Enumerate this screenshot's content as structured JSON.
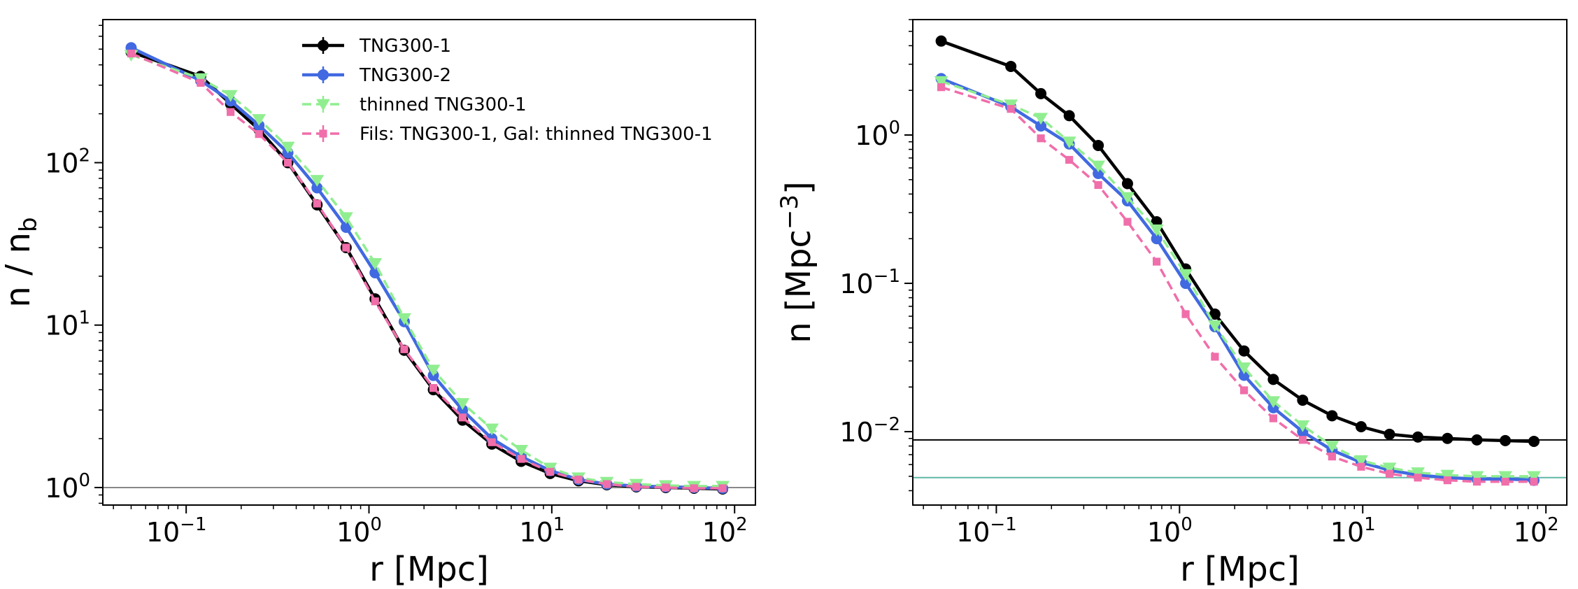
{
  "chart_data": [
    {
      "type": "line",
      "xscale": "log",
      "yscale": "log",
      "xlim": [
        0.035,
        130
      ],
      "ylim": [
        0.78,
        760
      ],
      "xlabel": "r [Mpc]",
      "ylabel_main": "n / n",
      "ylabel_sub": "b",
      "xticks": [
        {
          "base": "10",
          "exp": "−1",
          "value": 0.1
        },
        {
          "base": "10",
          "exp": "0",
          "value": 1
        },
        {
          "base": "10",
          "exp": "1",
          "value": 10
        },
        {
          "base": "10",
          "exp": "2",
          "value": 100
        }
      ],
      "yticks": [
        {
          "base": "10",
          "exp": "0",
          "value": 1
        },
        {
          "base": "10",
          "exp": "1",
          "value": 10
        },
        {
          "base": "10",
          "exp": "2",
          "value": 100
        }
      ],
      "hlines": [
        {
          "y": 1.0,
          "color": "#888888"
        }
      ],
      "legend_position": "upper-center",
      "series": [
        {
          "name": "TNG300-1",
          "color": "#000000",
          "dash": "solid",
          "marker": "circle",
          "x": [
            0.05,
            0.12,
            0.175,
            0.25,
            0.36,
            0.52,
            0.75,
            1.08,
            1.56,
            2.25,
            3.25,
            4.7,
            6.8,
            9.8,
            14,
            20,
            29,
            42,
            60,
            86
          ],
          "y": [
            480,
            340,
            230,
            160,
            100,
            55,
            30,
            14.5,
            7,
            4.0,
            2.6,
            1.85,
            1.45,
            1.22,
            1.1,
            1.04,
            1.01,
            1.0,
            0.99,
            0.98
          ]
        },
        {
          "name": "TNG300-2",
          "color": "#4169e1",
          "dash": "solid",
          "marker": "circle",
          "x": [
            0.05,
            0.12,
            0.175,
            0.25,
            0.36,
            0.52,
            0.75,
            1.08,
            1.56,
            2.25,
            3.25,
            4.7,
            6.8,
            9.8,
            14,
            20,
            29,
            42,
            60,
            86
          ],
          "y": [
            510,
            320,
            240,
            170,
            115,
            70,
            40,
            21,
            10.5,
            4.9,
            3.0,
            2.0,
            1.55,
            1.27,
            1.12,
            1.05,
            1.02,
            1.01,
            1.0,
            0.99
          ]
        },
        {
          "name": "thinned TNG300-1",
          "color": "#90ee90",
          "dash": "dashed",
          "marker": "triangle-down",
          "x": [
            0.05,
            0.12,
            0.175,
            0.25,
            0.36,
            0.52,
            0.75,
            1.08,
            1.56,
            2.25,
            3.25,
            4.7,
            6.8,
            9.8,
            14,
            20,
            29,
            42,
            60,
            86
          ],
          "y": [
            460,
            330,
            260,
            185,
            125,
            78,
            46,
            24,
            11,
            5.3,
            3.3,
            2.3,
            1.7,
            1.32,
            1.15,
            1.08,
            1.05,
            1.03,
            1.02,
            1.02
          ]
        },
        {
          "name": "Fils: TNG300-1, Gal: thinned TNG300-1",
          "color": "#f06eaa",
          "dash": "dashed",
          "marker": "square",
          "x": [
            0.05,
            0.12,
            0.175,
            0.25,
            0.36,
            0.52,
            0.75,
            1.08,
            1.56,
            2.25,
            3.25,
            4.7,
            6.8,
            9.8,
            14,
            20,
            29,
            42,
            60,
            86
          ],
          "y": [
            470,
            310,
            205,
            150,
            100,
            56,
            30,
            14,
            7.1,
            4.1,
            2.7,
            1.9,
            1.5,
            1.25,
            1.12,
            1.05,
            1.01,
            1.0,
            0.99,
            0.99
          ]
        }
      ]
    },
    {
      "type": "line",
      "xscale": "log",
      "yscale": "log",
      "xlim": [
        0.035,
        130
      ],
      "ylim": [
        0.0032,
        6.0
      ],
      "xlabel": "r [Mpc]",
      "ylabel_main": "n [Mpc",
      "ylabel_sup": "−3",
      "ylabel_end": "]",
      "xticks": [
        {
          "base": "10",
          "exp": "−1",
          "value": 0.1
        },
        {
          "base": "10",
          "exp": "0",
          "value": 1
        },
        {
          "base": "10",
          "exp": "1",
          "value": 10
        },
        {
          "base": "10",
          "exp": "2",
          "value": 100
        }
      ],
      "yticks": [
        {
          "base": "10",
          "exp": "−2",
          "value": 0.01
        },
        {
          "base": "10",
          "exp": "−1",
          "value": 0.1
        },
        {
          "base": "10",
          "exp": "0",
          "value": 1
        }
      ],
      "hlines": [
        {
          "y": 0.0088,
          "color": "#000000"
        },
        {
          "y": 0.0049,
          "color": "#5fb8a6"
        }
      ],
      "legend_position": "none",
      "series": [
        {
          "name": "TNG300-1",
          "color": "#000000",
          "dash": "solid",
          "marker": "circle",
          "x": [
            0.05,
            0.12,
            0.175,
            0.25,
            0.36,
            0.52,
            0.75,
            1.08,
            1.56,
            2.25,
            3.25,
            4.7,
            6.8,
            9.8,
            14,
            20,
            29,
            42,
            60,
            86
          ],
          "y": [
            4.3,
            2.9,
            1.9,
            1.35,
            0.85,
            0.47,
            0.26,
            0.125,
            0.062,
            0.035,
            0.0225,
            0.0163,
            0.0128,
            0.0108,
            0.0096,
            0.0092,
            0.009,
            0.0088,
            0.0087,
            0.0086
          ]
        },
        {
          "name": "TNG300-2",
          "color": "#4169e1",
          "dash": "solid",
          "marker": "circle",
          "x": [
            0.05,
            0.12,
            0.175,
            0.25,
            0.36,
            0.52,
            0.75,
            1.08,
            1.56,
            2.25,
            3.25,
            4.7,
            6.8,
            9.8,
            14,
            20,
            29,
            42,
            60,
            86
          ],
          "y": [
            2.4,
            1.55,
            1.15,
            0.87,
            0.55,
            0.36,
            0.2,
            0.1,
            0.051,
            0.024,
            0.0145,
            0.01,
            0.0075,
            0.0062,
            0.0055,
            0.0051,
            0.0049,
            0.0048,
            0.0048,
            0.0047
          ]
        },
        {
          "name": "thinned TNG300-1",
          "color": "#90ee90",
          "dash": "dashed",
          "marker": "triangle-down",
          "x": [
            0.05,
            0.12,
            0.175,
            0.25,
            0.36,
            0.52,
            0.75,
            1.08,
            1.56,
            2.25,
            3.25,
            4.7,
            6.8,
            9.8,
            14,
            20,
            29,
            42,
            60,
            86
          ],
          "y": [
            2.3,
            1.6,
            1.3,
            0.9,
            0.62,
            0.38,
            0.23,
            0.115,
            0.052,
            0.027,
            0.016,
            0.011,
            0.008,
            0.0064,
            0.0057,
            0.0053,
            0.0051,
            0.005,
            0.005,
            0.005
          ]
        },
        {
          "name": "Fils: TNG300-1, Gal: thinned TNG300-1",
          "color": "#f06eaa",
          "dash": "dashed",
          "marker": "square",
          "x": [
            0.05,
            0.12,
            0.175,
            0.25,
            0.36,
            0.52,
            0.75,
            1.08,
            1.56,
            2.25,
            3.25,
            4.7,
            6.8,
            9.8,
            14,
            20,
            29,
            42,
            60,
            86
          ],
          "y": [
            2.1,
            1.5,
            0.95,
            0.68,
            0.46,
            0.26,
            0.14,
            0.062,
            0.032,
            0.019,
            0.0123,
            0.0088,
            0.0068,
            0.0058,
            0.0052,
            0.0049,
            0.0047,
            0.0046,
            0.0046,
            0.0046
          ]
        }
      ]
    }
  ]
}
